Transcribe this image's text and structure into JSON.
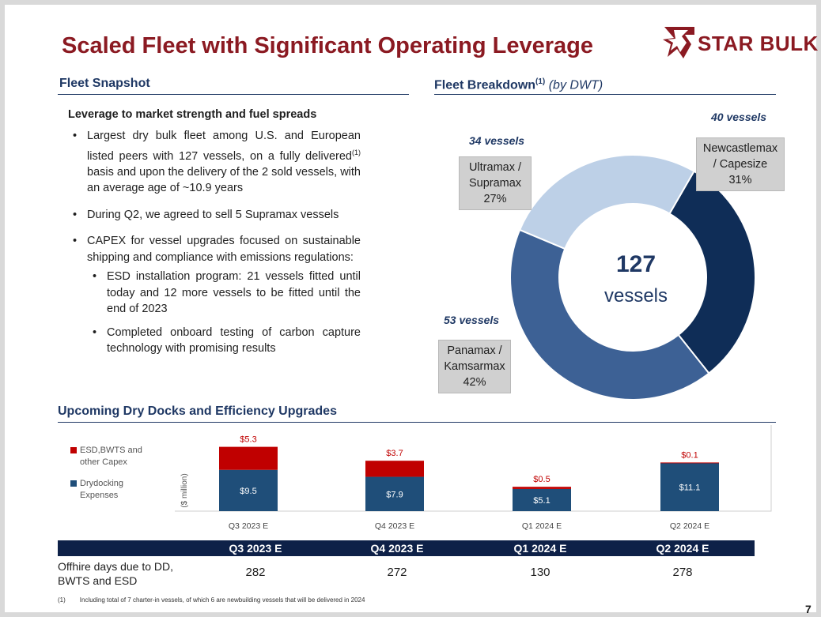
{
  "title": "Scaled Fleet with Significant Operating Leverage",
  "logo": {
    "text": "STAR BULK",
    "icon": "star-bulk-logo-icon",
    "color": "#8b1a22"
  },
  "fleet_snapshot": {
    "heading": "Fleet Snapshot",
    "lead": "Leverage to market strength and fuel spreads",
    "bullets": [
      {
        "pre": "Largest dry bulk fleet among U.S. and European listed peers with 127 vessels, on a fully delivered",
        "sup": "(1)",
        "post": " basis and upon the delivery of the 2 sold vessels, with an average age of ~10.9 years"
      },
      {
        "text": "During Q2, we agreed to sell 5 Supramax vessels"
      },
      {
        "text": "CAPEX for vessel upgrades focused on sustainable shipping and compliance with emissions regulations:"
      }
    ],
    "sub_bullets": [
      "ESD installation program: 21 vessels fitted until today and 12 more vessels to be fitted until the end of 2023",
      "Completed onboard testing of carbon capture technology with promising results"
    ]
  },
  "fleet_breakdown": {
    "heading": "Fleet Breakdown",
    "heading_sup": "(1)",
    "heading_note": " (by DWT)",
    "center_value": "127",
    "center_label": "vessels"
  },
  "dry_docks": {
    "heading": "Upcoming Dry Docks and Efficiency Upgrades",
    "ylabel": "($ million)",
    "offhire": {
      "label": "Offhire days due to DD, BWTS and ESD",
      "headers": [
        "Q3 2023 E",
        "Q4 2023 E",
        "Q1 2024 E",
        "Q2 2024 E"
      ],
      "values": [
        "282",
        "272",
        "130",
        "278"
      ]
    }
  },
  "chart_data": [
    {
      "type": "pie",
      "title": "Fleet Breakdown (by DWT)",
      "categories": [
        "Newcastlemax / Capesize",
        "Panamax / Kamsarmax",
        "Ultramax / Supramax"
      ],
      "values": [
        31,
        42,
        27
      ],
      "value_labels": [
        "31%",
        "42%",
        "27%"
      ],
      "vessel_counts": [
        "40 vessels",
        "53 vessels",
        "34 vessels"
      ],
      "label_lines": [
        [
          "Newcastlemax",
          "/ Capesize"
        ],
        [
          "Panamax /",
          "Kamsarmax"
        ],
        [
          "Ultramax /",
          "Supramax"
        ]
      ],
      "colors": [
        "#0f2d57",
        "#3d6195",
        "#bdd0e7"
      ],
      "center_text": "127 vessels"
    },
    {
      "type": "bar",
      "stacked": true,
      "categories": [
        "Q3 2023 E",
        "Q4 2023 E",
        "Q1 2024 E",
        "Q2 2024 E"
      ],
      "ylabel": "($ million)",
      "series": [
        {
          "name": "Drydocking Expenses",
          "values": [
            9.5,
            7.9,
            5.1,
            11.1
          ],
          "labels": [
            "$9.5",
            "$7.9",
            "$5.1",
            "$11.1"
          ],
          "color": "#1f4e79"
        },
        {
          "name": "ESD,BWTS and other Capex",
          "values": [
            5.3,
            3.7,
            0.5,
            0.1
          ],
          "labels": [
            "$5.3",
            "$3.7",
            "$0.5",
            "$0.1"
          ],
          "color": "#c00000"
        }
      ],
      "legend_lines": [
        [
          "ESD,BWTS and",
          "other Capex"
        ],
        [
          "Drydocking",
          "Expenses"
        ]
      ],
      "legend": "left"
    }
  ],
  "footnote": {
    "marker": "(1)",
    "text": "Including total of 7 charter-in vessels, of which 6 are newbuilding vessels that will be delivered in 2024"
  },
  "page_number": "7"
}
